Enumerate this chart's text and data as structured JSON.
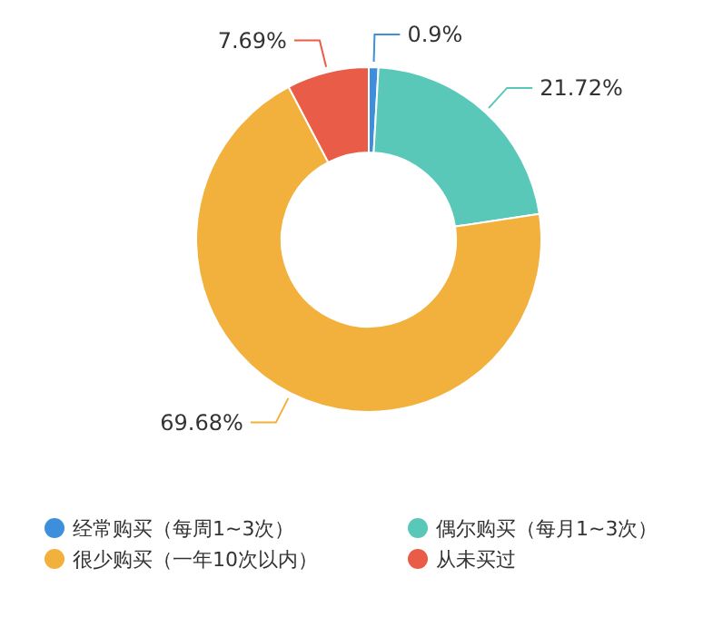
{
  "chart_data": {
    "type": "donut",
    "categories": [
      "经常购买（每周1~3次）",
      "偶尔购买（每月1~3次）",
      "很少购买（一年10次以内）",
      "从未买过"
    ],
    "values": [
      0.9,
      21.72,
      69.68,
      7.69
    ],
    "colors": [
      "#3d8fdc",
      "#5ac8b8",
      "#f2b03c",
      "#e85c48"
    ],
    "value_labels": [
      "0.9%",
      "21.72%",
      "69.68%",
      "7.69%"
    ],
    "legend": "bottom"
  }
}
